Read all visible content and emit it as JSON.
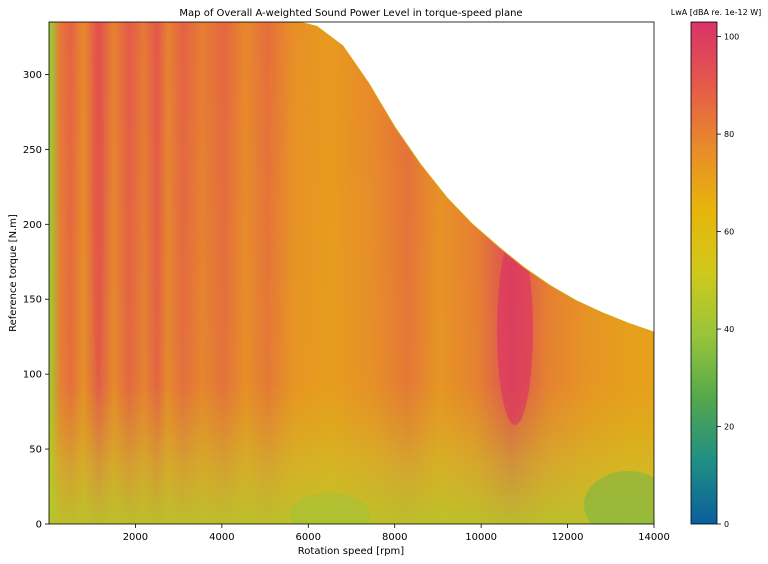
{
  "chart_data": {
    "type": "heatmap",
    "title": "Map of Overall A-weighted Sound Power Level in torque-speed plane",
    "xlabel": "Rotation speed [rpm]",
    "ylabel": "Reference torque [N.m]",
    "xlim": [
      0,
      14000
    ],
    "ylim": [
      0,
      335
    ],
    "xticks": [
      "2000",
      "4000",
      "6000",
      "8000",
      "10000",
      "12000",
      "14000"
    ],
    "xtick_values": [
      2000,
      4000,
      6000,
      8000,
      10000,
      12000,
      14000
    ],
    "yticks": [
      "0",
      "50",
      "100",
      "150",
      "200",
      "250",
      "300"
    ],
    "ytick_values": [
      0,
      50,
      100,
      150,
      200,
      250,
      300
    ],
    "colorbar": {
      "label": "LwA [dBA re. 1e-12 W]",
      "range": [
        0,
        103
      ],
      "ticks": [
        "0",
        "20",
        "40",
        "60",
        "80",
        "100"
      ],
      "tick_values": [
        0,
        20,
        40,
        60,
        80,
        100
      ],
      "colors": [
        "#0a5f9e",
        "#1f8f84",
        "#54a84c",
        "#98c43a",
        "#d0c91c",
        "#e8b40a",
        "#e88b2a",
        "#e45a4a",
        "#d9336a"
      ]
    },
    "torque_limit_curve": {
      "speed": [
        0,
        5800,
        6200,
        6800,
        7400,
        8000,
        8600,
        9200,
        9800,
        10400,
        11000,
        11600,
        12200,
        12800,
        13400,
        14000
      ],
      "torque": [
        335,
        335,
        332,
        319,
        294,
        265,
        240,
        218,
        200,
        185,
        171,
        159,
        149,
        141,
        134,
        128
      ]
    },
    "speed_bands": [
      {
        "x0": 0,
        "x1": 100,
        "level": 40
      },
      {
        "x0": 100,
        "x1": 400,
        "level": 82
      },
      {
        "x0": 400,
        "x1": 600,
        "level": 88
      },
      {
        "x0": 600,
        "x1": 1000,
        "level": 78
      },
      {
        "x0": 1000,
        "x1": 1300,
        "level": 94
      },
      {
        "x0": 1300,
        "x1": 1700,
        "level": 80
      },
      {
        "x0": 1700,
        "x1": 2000,
        "level": 90
      },
      {
        "x0": 2000,
        "x1": 2400,
        "level": 82
      },
      {
        "x0": 2400,
        "x1": 2600,
        "level": 91
      },
      {
        "x0": 2600,
        "x1": 2900,
        "level": 80
      },
      {
        "x0": 2900,
        "x1": 3300,
        "level": 88
      },
      {
        "x0": 3300,
        "x1": 3800,
        "level": 81
      },
      {
        "x0": 3800,
        "x1": 4300,
        "level": 87
      },
      {
        "x0": 4300,
        "x1": 4800,
        "level": 78
      },
      {
        "x0": 4800,
        "x1": 5300,
        "level": 85
      },
      {
        "x0": 5300,
        "x1": 6000,
        "level": 76
      },
      {
        "x0": 6000,
        "x1": 7000,
        "level": 73
      },
      {
        "x0": 7000,
        "x1": 8000,
        "level": 78
      },
      {
        "x0": 8000,
        "x1": 8600,
        "level": 85
      },
      {
        "x0": 8600,
        "x1": 9500,
        "level": 76
      },
      {
        "x0": 9500,
        "x1": 10300,
        "level": 82
      },
      {
        "x0": 10300,
        "x1": 11100,
        "level": 98
      },
      {
        "x0": 11100,
        "x1": 12000,
        "level": 82
      },
      {
        "x0": 12000,
        "x1": 13000,
        "level": 76
      },
      {
        "x0": 13000,
        "x1": 14000,
        "level": 72
      }
    ]
  }
}
